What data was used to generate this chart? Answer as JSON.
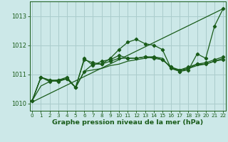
{
  "background_color": "#cce8e8",
  "grid_color": "#aacccc",
  "line_color": "#1a5c1a",
  "xlabel": "Graphe pression niveau de la mer (hPa)",
  "ylim": [
    1009.75,
    1013.5
  ],
  "xlim": [
    -0.3,
    22.3
  ],
  "yticks": [
    1010,
    1011,
    1012,
    1013
  ],
  "xticks": [
    0,
    1,
    2,
    3,
    4,
    5,
    6,
    7,
    8,
    9,
    10,
    11,
    12,
    13,
    14,
    15,
    16,
    17,
    18,
    19,
    20,
    21,
    22
  ],
  "series_nomarker": [
    [
      1010.1,
      1010.6,
      1010.75,
      1010.8,
      1010.85,
      1010.55,
      1011.1,
      1011.15,
      1011.2,
      1011.3,
      1011.35,
      1011.45,
      1011.5,
      1011.55,
      1011.6,
      1011.55,
      1011.2,
      1011.15,
      1011.2,
      1011.3,
      1011.35,
      1011.45,
      1011.55
    ]
  ],
  "series_marker": [
    [
      1010.1,
      1010.9,
      1010.8,
      1010.75,
      1010.85,
      1010.55,
      1011.5,
      1011.4,
      1011.35,
      1011.55,
      1011.85,
      1012.1,
      1012.2,
      1012.05,
      1012.0,
      1011.85,
      1011.2,
      1011.1,
      1011.15,
      1011.7,
      1011.55,
      1012.65,
      1013.25
    ],
    [
      1010.1,
      1010.9,
      1010.75,
      1010.8,
      1010.85,
      1010.55,
      1011.55,
      1011.3,
      1011.45,
      1011.5,
      1011.65,
      1011.55,
      1011.55,
      1011.6,
      1011.55,
      1011.5,
      1011.25,
      1011.15,
      1011.25,
      1011.35,
      1011.4,
      1011.5,
      1011.6
    ],
    [
      1010.1,
      1010.9,
      1010.8,
      1010.8,
      1010.9,
      1010.55,
      1011.1,
      1011.35,
      1011.35,
      1011.45,
      1011.55,
      1011.55,
      1011.55,
      1011.6,
      1011.6,
      1011.5,
      1011.25,
      1011.1,
      1011.2,
      1011.35,
      1011.35,
      1011.45,
      1011.5
    ]
  ],
  "linear_line": [
    1010.05,
    1013.25
  ]
}
